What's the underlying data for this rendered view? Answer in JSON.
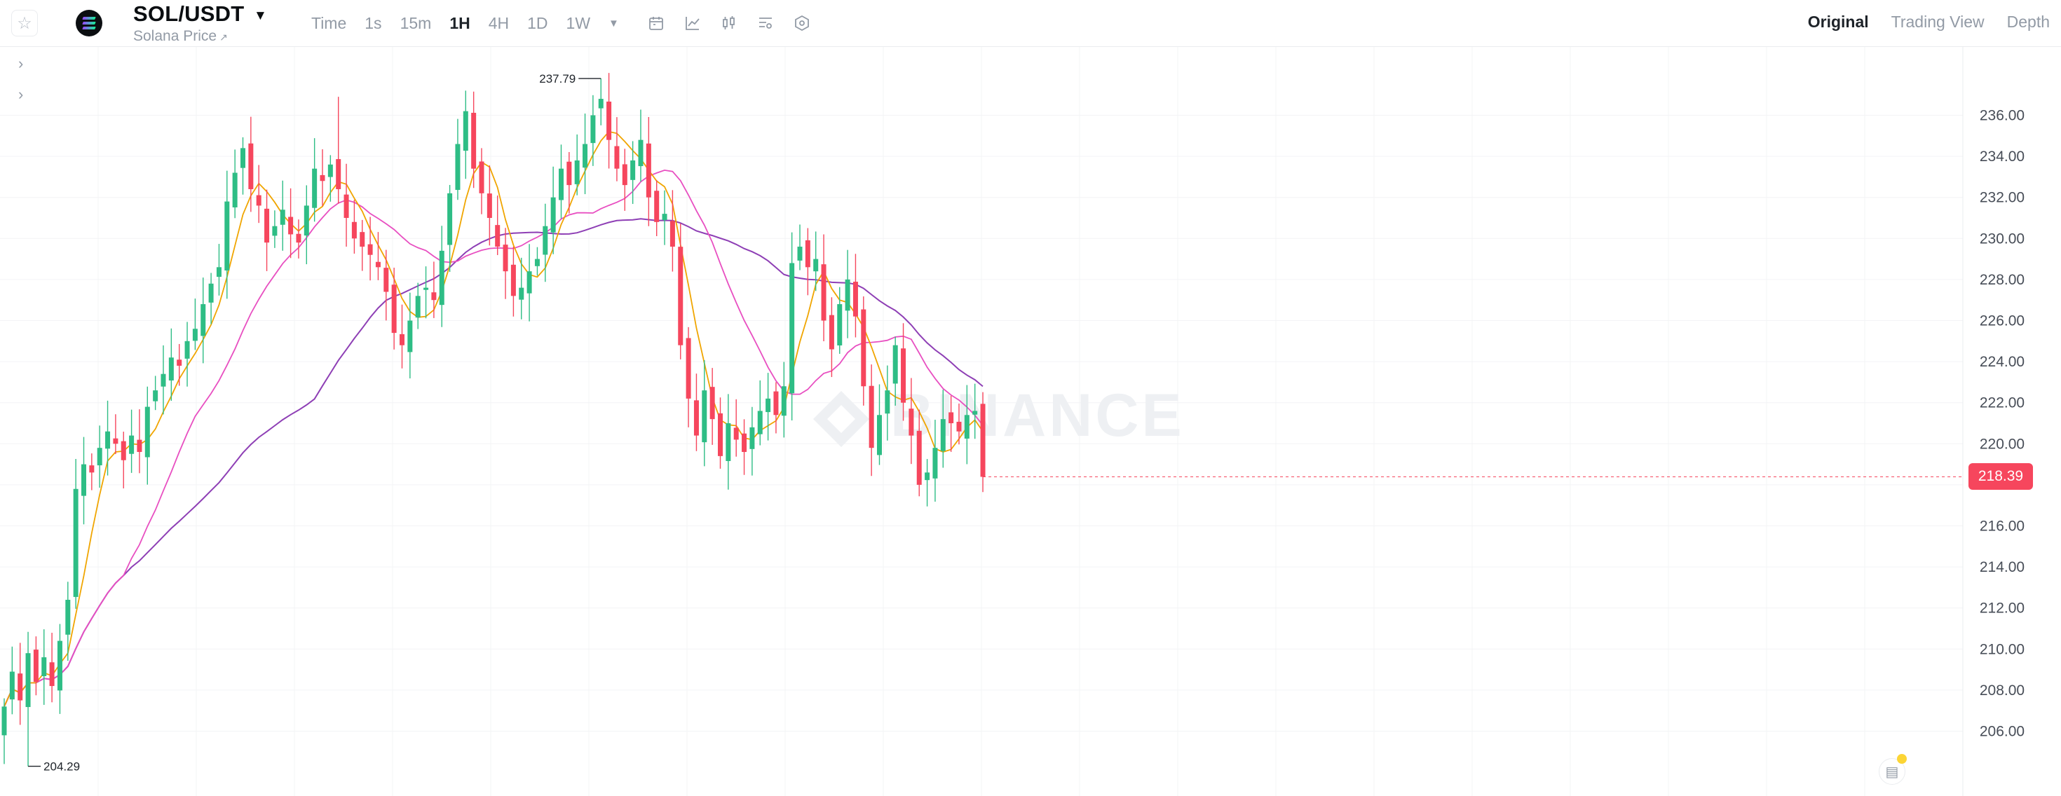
{
  "header": {
    "symbol": "SOL/USDT",
    "subtitle": "Solana Price",
    "subtitle_arrow": "↗",
    "intervals": [
      "Time",
      "1s",
      "15m",
      "1H",
      "4H",
      "1D",
      "1W"
    ],
    "active_interval": "1H",
    "tool_icons": [
      "calendar-icon",
      "indicator-chart-icon",
      "candle-style-icon",
      "chart-settings-icon",
      "hexagon-settings-icon"
    ],
    "views": [
      "Original",
      "Trading View",
      "Depth"
    ],
    "active_view": "Original"
  },
  "watermark": "BINANCE",
  "colors": {
    "up": "#2ebd85",
    "down": "#f6465d",
    "ma_fast": "#f0a500",
    "ma_mid": "#e84fc1",
    "ma_slow": "#8e3fb5",
    "grid": "#f3f4f6"
  },
  "current_price": "218.39",
  "chart_data": {
    "type": "candlestick",
    "title": "",
    "timeframe": "1H",
    "ylim": [
      204.0,
      237.8
    ],
    "y_ticks": [
      "206.00",
      "208.00",
      "210.00",
      "212.00",
      "214.00",
      "216.00",
      "218.00",
      "220.00",
      "222.00",
      "224.00",
      "226.00",
      "228.00",
      "230.00",
      "232.00",
      "234.00",
      "236.00"
    ],
    "annotations": {
      "high": "237.79",
      "low": "204.29"
    },
    "close": [
      207.2,
      208.9,
      207.5,
      209.8,
      208.4,
      209.6,
      208.2,
      210.4,
      212.4,
      217.8,
      219.0,
      218.6,
      219.8,
      220.6,
      220.0,
      219.2,
      220.4,
      219.6,
      221.8,
      222.6,
      223.4,
      224.2,
      223.8,
      225.0,
      225.6,
      226.8,
      227.8,
      228.6,
      231.8,
      233.2,
      234.4,
      232.4,
      231.6,
      229.8,
      230.6,
      231.4,
      230.2,
      229.8,
      231.6,
      233.4,
      232.8,
      233.6,
      232.4,
      231.0,
      230.0,
      229.6,
      229.2,
      228.6,
      227.4,
      225.4,
      224.8,
      226.0,
      227.2,
      227.6,
      227.0,
      229.4,
      232.2,
      234.6,
      236.2,
      233.4,
      232.2,
      231.0,
      229.6,
      228.4,
      227.2,
      227.6,
      228.4,
      229.0,
      230.6,
      232.0,
      233.4,
      232.6,
      233.8,
      234.6,
      236.0,
      236.8,
      234.8,
      233.4,
      232.6,
      233.8,
      234.8,
      232.0,
      230.8,
      231.2,
      229.6,
      224.8,
      222.2,
      220.4,
      222.6,
      221.2,
      219.4,
      221.0,
      220.2,
      219.6,
      220.8,
      221.6,
      222.2,
      221.4,
      222.8,
      228.8,
      229.6,
      228.6,
      229.0,
      226.0,
      224.6,
      226.8,
      228.0,
      226.2,
      222.8,
      219.8,
      221.4,
      222.6,
      224.8,
      222.0,
      220.4,
      218.0,
      218.6,
      219.8,
      221.2,
      221.0,
      220.6,
      221.4,
      221.6,
      218.39
    ]
  }
}
